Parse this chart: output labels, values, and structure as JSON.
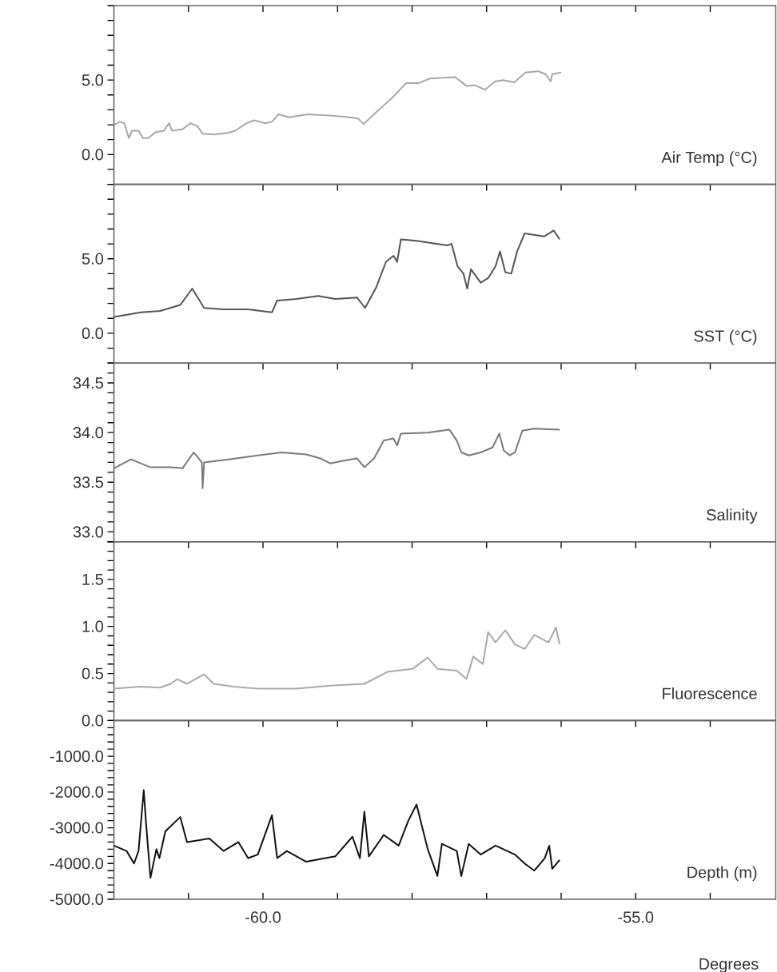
{
  "chart_data": [
    {
      "type": "line",
      "ylabel": "Air Temp (°C)",
      "xlim": [
        -62,
        -53.12
      ],
      "ylim": [
        -2,
        10
      ],
      "tick_labels": "y",
      "xticks": [
        -61,
        -60,
        -59,
        -58,
        -57,
        -56,
        -55,
        -54
      ],
      "yticks": [
        {
          "value": -2,
          "label": null
        },
        {
          "value": -1,
          "label": null
        },
        {
          "value": 0,
          "label": "0.0"
        },
        {
          "value": 1,
          "label": null
        },
        {
          "value": 2,
          "label": null
        },
        {
          "value": 3,
          "label": null
        },
        {
          "value": 4,
          "label": null
        },
        {
          "value": 5,
          "label": "5.0"
        },
        {
          "value": 6,
          "label": null
        },
        {
          "value": 7,
          "label": null
        },
        {
          "value": 8,
          "label": null
        },
        {
          "value": 9,
          "label": null
        },
        {
          "value": 10,
          "label": null
        }
      ],
      "series": [
        {
          "color": "#a8a8a8",
          "x": [
            -62.0,
            -61.92,
            -61.86,
            -61.8,
            -61.76,
            -61.67,
            -61.61,
            -61.54,
            -61.44,
            -61.33,
            -61.26,
            -61.22,
            -61.08,
            -60.97,
            -60.88,
            -60.81,
            -60.65,
            -60.47,
            -60.37,
            -60.22,
            -60.12,
            -59.97,
            -59.88,
            -59.79,
            -59.65,
            -59.4,
            -59.05,
            -58.83,
            -58.72,
            -58.65,
            -58.48,
            -58.29,
            -58.18,
            -58.08,
            -57.91,
            -57.76,
            -57.42,
            -57.27,
            -57.16,
            -57.02,
            -56.89,
            -56.78,
            -56.63,
            -56.48,
            -56.31,
            -56.21,
            -56.14,
            -56.12,
            -56.0
          ],
          "values": [
            2.0,
            2.2,
            2.1,
            1.1,
            1.6,
            1.6,
            1.1,
            1.1,
            1.5,
            1.6,
            2.1,
            1.6,
            1.7,
            2.1,
            1.9,
            1.4,
            1.35,
            1.45,
            1.6,
            2.1,
            2.3,
            2.1,
            2.2,
            2.7,
            2.5,
            2.7,
            2.6,
            2.5,
            2.4,
            2.05,
            2.85,
            3.7,
            4.26,
            4.8,
            4.8,
            5.1,
            5.2,
            4.6,
            4.65,
            4.35,
            4.9,
            5.0,
            4.85,
            5.5,
            5.6,
            5.4,
            4.9,
            5.4,
            5.5
          ]
        }
      ]
    },
    {
      "type": "line",
      "ylabel": "SST (°C)",
      "xlim": [
        -62,
        -53.12
      ],
      "ylim": [
        -2,
        10
      ],
      "tick_labels": "y",
      "xticks": [
        -61,
        -60,
        -59,
        -58,
        -57,
        -56,
        -55,
        -54
      ],
      "yticks": [
        {
          "value": -2,
          "label": null
        },
        {
          "value": -1,
          "label": null
        },
        {
          "value": 0,
          "label": "0.0"
        },
        {
          "value": 1,
          "label": null
        },
        {
          "value": 2,
          "label": null
        },
        {
          "value": 3,
          "label": null
        },
        {
          "value": 4,
          "label": null
        },
        {
          "value": 5,
          "label": "5.0"
        },
        {
          "value": 6,
          "label": null
        },
        {
          "value": 7,
          "label": null
        },
        {
          "value": 8,
          "label": null
        },
        {
          "value": 9,
          "label": null
        },
        {
          "value": 10,
          "label": null
        }
      ],
      "series": [
        {
          "color": "#555555",
          "x": [
            -62.0,
            -61.64,
            -61.38,
            -61.11,
            -60.95,
            -60.79,
            -60.53,
            -60.2,
            -59.88,
            -59.81,
            -59.55,
            -59.26,
            -59.03,
            -58.74,
            -58.63,
            -58.48,
            -58.35,
            -58.25,
            -58.2,
            -58.15,
            -57.92,
            -57.53,
            -57.47,
            -57.39,
            -57.31,
            -57.26,
            -57.21,
            -57.08,
            -56.98,
            -56.88,
            -56.82,
            -56.75,
            -56.67,
            -56.59,
            -56.49,
            -56.23,
            -56.1,
            -56.02
          ],
          "values": [
            1.1,
            1.4,
            1.5,
            1.9,
            3.0,
            1.7,
            1.6,
            1.6,
            1.4,
            2.2,
            2.3,
            2.5,
            2.3,
            2.4,
            1.7,
            3.1,
            4.8,
            5.2,
            4.8,
            6.3,
            6.2,
            5.9,
            6.0,
            4.5,
            4.0,
            3.0,
            4.3,
            3.4,
            3.7,
            4.5,
            5.5,
            4.1,
            4.0,
            5.5,
            6.7,
            6.5,
            6.9,
            6.3
          ]
        }
      ]
    },
    {
      "type": "line",
      "ylabel": "Salinity",
      "xlim": [
        -62,
        -53.12
      ],
      "ylim": [
        32.9,
        34.7
      ],
      "tick_labels": "y",
      "xticks": [
        -61,
        -60,
        -59,
        -58,
        -57,
        -56,
        -55,
        -54
      ],
      "yticks": [
        {
          "value": 32.9,
          "label": null
        },
        {
          "value": 33.0,
          "label": "33.0"
        },
        {
          "value": 33.1,
          "label": null
        },
        {
          "value": 33.2,
          "label": null
        },
        {
          "value": 33.3,
          "label": null
        },
        {
          "value": 33.4,
          "label": null
        },
        {
          "value": 33.5,
          "label": "33.5"
        },
        {
          "value": 33.6,
          "label": null
        },
        {
          "value": 33.7,
          "label": null
        },
        {
          "value": 33.8,
          "label": null
        },
        {
          "value": 33.9,
          "label": null
        },
        {
          "value": 34.0,
          "label": "34.0"
        },
        {
          "value": 34.1,
          "label": null
        },
        {
          "value": 34.2,
          "label": null
        },
        {
          "value": 34.3,
          "label": null
        },
        {
          "value": 34.4,
          "label": null
        },
        {
          "value": 34.5,
          "label": "34.5"
        },
        {
          "value": 34.6,
          "label": null
        },
        {
          "value": 34.7,
          "label": null
        }
      ],
      "series": [
        {
          "color": "#7a7a7a",
          "x": [
            -62.0,
            -61.77,
            -61.51,
            -61.24,
            -61.08,
            -60.93,
            -60.82,
            -60.81,
            -60.79,
            -60.46,
            -60.07,
            -59.75,
            -59.42,
            -59.23,
            -59.1,
            -58.9,
            -58.74,
            -58.64,
            -58.51,
            -58.38,
            -58.25,
            -58.2,
            -58.15,
            -57.79,
            -57.5,
            -57.4,
            -57.34,
            -57.24,
            -57.08,
            -56.92,
            -56.83,
            -56.77,
            -56.69,
            -56.62,
            -56.52,
            -56.36,
            -56.02
          ],
          "values": [
            33.64,
            33.73,
            33.65,
            33.65,
            33.64,
            33.8,
            33.7,
            33.44,
            33.7,
            33.73,
            33.77,
            33.8,
            33.78,
            33.74,
            33.69,
            33.72,
            33.74,
            33.65,
            33.74,
            33.92,
            33.94,
            33.87,
            33.99,
            34.0,
            34.03,
            33.92,
            33.8,
            33.77,
            33.8,
            33.85,
            33.99,
            33.82,
            33.77,
            33.8,
            34.02,
            34.04,
            34.03
          ]
        }
      ]
    },
    {
      "type": "line",
      "ylabel": "Fluorescence",
      "xlim": [
        -62,
        -53.12
      ],
      "ylim": [
        0,
        1.9
      ],
      "tick_labels": "y",
      "xticks": [
        -61,
        -60,
        -59,
        -58,
        -57,
        -56,
        -55,
        -54
      ],
      "yticks": [
        {
          "value": 0.0,
          "label": null
        },
        {
          "value": 0.1,
          "label": null
        },
        {
          "value": 0.2,
          "label": null
        },
        {
          "value": 0.3,
          "label": null
        },
        {
          "value": 0.4,
          "label": null
        },
        {
          "value": 0.5,
          "label": "0.5"
        },
        {
          "value": 0.6,
          "label": null
        },
        {
          "value": 0.7,
          "label": null
        },
        {
          "value": 0.8,
          "label": null
        },
        {
          "value": 0.9,
          "label": null
        },
        {
          "value": 1.0,
          "label": "1.0"
        },
        {
          "value": 1.1,
          "label": null
        },
        {
          "value": 1.2,
          "label": null
        },
        {
          "value": 1.3,
          "label": null
        },
        {
          "value": 1.4,
          "label": null
        },
        {
          "value": 1.5,
          "label": "1.5"
        },
        {
          "value": 1.6,
          "label": null
        },
        {
          "value": 1.7,
          "label": null
        },
        {
          "value": 1.8,
          "label": null
        },
        {
          "value": 1.9,
          "label": null
        }
      ],
      "series": [
        {
          "color": "#aaaaaa",
          "x": [
            -62.0,
            -61.64,
            -61.38,
            -61.24,
            -61.15,
            -61.02,
            -60.79,
            -60.66,
            -60.4,
            -60.07,
            -59.55,
            -59.1,
            -58.64,
            -58.32,
            -57.99,
            -57.79,
            -57.66,
            -57.4,
            -57.27,
            -57.18,
            -57.05,
            -56.98,
            -56.88,
            -56.75,
            -56.62,
            -56.49,
            -56.36,
            -56.17,
            -56.07,
            -56.02
          ],
          "values": [
            0.34,
            0.36,
            0.35,
            0.39,
            0.44,
            0.39,
            0.49,
            0.39,
            0.36,
            0.34,
            0.34,
            0.37,
            0.39,
            0.52,
            0.55,
            0.67,
            0.55,
            0.53,
            0.44,
            0.68,
            0.6,
            0.94,
            0.83,
            0.96,
            0.81,
            0.76,
            0.91,
            0.83,
            0.99,
            0.81
          ]
        }
      ]
    },
    {
      "type": "line",
      "ylabel": "Depth (m)",
      "xlabel": "Degrees",
      "xlim": [
        -62,
        -53.12
      ],
      "ylim": [
        -5000,
        0
      ],
      "xticks": [
        {
          "value": -61,
          "label": null
        },
        {
          "value": -60,
          "label": "-60.0"
        },
        {
          "value": -59,
          "label": null
        },
        {
          "value": -58,
          "label": null
        },
        {
          "value": -57,
          "label": null
        },
        {
          "value": -56,
          "label": null
        },
        {
          "value": -55,
          "label": "-55.0"
        },
        {
          "value": -54,
          "label": null
        }
      ],
      "yticks": [
        {
          "value": -5000,
          "label": "-5000.0"
        },
        {
          "value": -4800,
          "label": null
        },
        {
          "value": -4600,
          "label": null
        },
        {
          "value": -4400,
          "label": null
        },
        {
          "value": -4200,
          "label": null
        },
        {
          "value": -4000,
          "label": "-4000.0"
        },
        {
          "value": -3800,
          "label": null
        },
        {
          "value": -3600,
          "label": null
        },
        {
          "value": -3400,
          "label": null
        },
        {
          "value": -3200,
          "label": null
        },
        {
          "value": -3000,
          "label": "-3000.0"
        },
        {
          "value": -2800,
          "label": null
        },
        {
          "value": -2600,
          "label": null
        },
        {
          "value": -2400,
          "label": null
        },
        {
          "value": -2200,
          "label": null
        },
        {
          "value": -2000,
          "label": "-2000.0"
        },
        {
          "value": -1800,
          "label": null
        },
        {
          "value": -1600,
          "label": null
        },
        {
          "value": -1400,
          "label": null
        },
        {
          "value": -1200,
          "label": null
        },
        {
          "value": -1000,
          "label": "-1000.0"
        },
        {
          "value": -800,
          "label": null
        },
        {
          "value": -600,
          "label": null
        },
        {
          "value": -400,
          "label": null
        },
        {
          "value": -200,
          "label": null
        },
        {
          "value": 0,
          "label": "0.0"
        }
      ],
      "series": [
        {
          "color": "#111111",
          "x": [
            -62.0,
            -61.83,
            -61.73,
            -61.67,
            -61.6,
            -61.57,
            -61.51,
            -61.43,
            -61.39,
            -61.31,
            -61.11,
            -61.02,
            -60.72,
            -60.53,
            -60.33,
            -60.2,
            -60.07,
            -59.88,
            -59.81,
            -59.68,
            -59.42,
            -59.03,
            -58.8,
            -58.7,
            -58.64,
            -58.58,
            -58.38,
            -58.18,
            -58.05,
            -57.94,
            -57.79,
            -57.66,
            -57.6,
            -57.4,
            -57.34,
            -57.24,
            -57.08,
            -56.88,
            -56.62,
            -56.49,
            -56.36,
            -56.22,
            -56.16,
            -56.12,
            -56.02
          ],
          "values": [
            -3500,
            -3650,
            -4000,
            -3650,
            -1950,
            -2850,
            -4400,
            -3600,
            -3850,
            -3100,
            -2700,
            -3400,
            -3300,
            -3650,
            -3400,
            -3850,
            -3750,
            -2650,
            -3850,
            -3650,
            -3950,
            -3800,
            -3250,
            -3850,
            -2550,
            -3800,
            -3200,
            -3500,
            -2800,
            -2350,
            -3600,
            -4350,
            -3450,
            -3650,
            -4350,
            -3450,
            -3750,
            -3500,
            -3750,
            -4000,
            -4200,
            -3850,
            -3500,
            -4150,
            -3900
          ]
        }
      ]
    }
  ]
}
